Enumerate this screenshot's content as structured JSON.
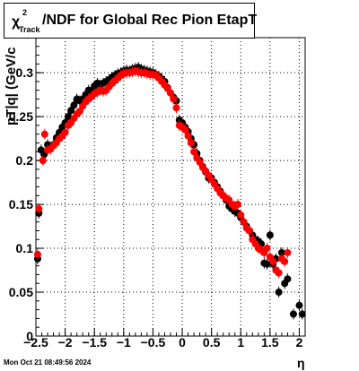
{
  "title": {
    "chi_symbol": "χ",
    "superscript": "2",
    "subscript": "Track",
    "rest": "/NDF for Global Rec Pion EtapT"
  },
  "timestamp": "Mon Oct 21 08:49:56 2024",
  "chart_data": {
    "type": "scatter",
    "xlabel": "η",
    "ylabel": "p_{T}|q| (GeV/c)",
    "ylabel_display": "pT|q| (GeV/c",
    "xlim": [
      -2.5,
      2.1
    ],
    "ylim": [
      0,
      0.34
    ],
    "xticks": [
      -2.5,
      -2,
      -1.5,
      -1,
      -0.5,
      0,
      0.5,
      1,
      1.5,
      2
    ],
    "xtick_labels": [
      "−2.5",
      "−2",
      "−1.5",
      "−1",
      "−0.5",
      "0",
      "0.5",
      "1",
      "1.5",
      "2"
    ],
    "yticks": [
      0,
      0.05,
      0.1,
      0.15,
      0.2,
      0.25,
      0.3
    ],
    "ytick_labels": [
      "0",
      "0.05",
      "0.1",
      "0.15",
      "0.2",
      "0.25",
      "0.3"
    ],
    "grid": true,
    "series": [
      {
        "color": "#000000",
        "marker": "circle",
        "points": [
          [
            -2.47,
            0.088
          ],
          [
            -2.45,
            0.14
          ],
          [
            -2.41,
            0.212
          ],
          [
            -2.36,
            0.207
          ],
          [
            -2.3,
            0.218
          ],
          [
            -2.25,
            0.215
          ],
          [
            -2.2,
            0.218
          ],
          [
            -2.15,
            0.226
          ],
          [
            -2.1,
            0.232
          ],
          [
            -2.05,
            0.238
          ],
          [
            -2.0,
            0.243
          ],
          [
            -1.95,
            0.25
          ],
          [
            -1.9,
            0.257
          ],
          [
            -1.85,
            0.263
          ],
          [
            -1.8,
            0.27
          ],
          [
            -1.75,
            0.268
          ],
          [
            -1.7,
            0.27
          ],
          [
            -1.65,
            0.275
          ],
          [
            -1.6,
            0.28
          ],
          [
            -1.55,
            0.28
          ],
          [
            -1.5,
            0.285
          ],
          [
            -1.45,
            0.288
          ],
          [
            -1.4,
            0.286
          ],
          [
            -1.35,
            0.288
          ],
          [
            -1.3,
            0.29
          ],
          [
            -1.25,
            0.292
          ],
          [
            -1.2,
            0.295
          ],
          [
            -1.15,
            0.297
          ],
          [
            -1.1,
            0.299
          ],
          [
            -1.05,
            0.3
          ],
          [
            -1.0,
            0.302
          ],
          [
            -0.95,
            0.303
          ],
          [
            -0.9,
            0.302
          ],
          [
            -0.85,
            0.304
          ],
          [
            -0.8,
            0.305
          ],
          [
            -0.75,
            0.306
          ],
          [
            -0.7,
            0.304
          ],
          [
            -0.65,
            0.303
          ],
          [
            -0.6,
            0.302
          ],
          [
            -0.55,
            0.301
          ],
          [
            -0.5,
            0.3
          ],
          [
            -0.45,
            0.298
          ],
          [
            -0.4,
            0.296
          ],
          [
            -0.35,
            0.293
          ],
          [
            -0.3,
            0.29
          ],
          [
            -0.25,
            0.283
          ],
          [
            -0.2,
            0.277
          ],
          [
            -0.15,
            0.272
          ],
          [
            -0.1,
            0.268
          ],
          [
            -0.05,
            0.246
          ],
          [
            0.0,
            0.243
          ],
          [
            0.05,
            0.238
          ],
          [
            0.1,
            0.233
          ],
          [
            0.15,
            0.225
          ],
          [
            0.2,
            0.218
          ],
          [
            0.25,
            0.208
          ],
          [
            0.3,
            0.2
          ],
          [
            0.35,
            0.193
          ],
          [
            0.4,
            0.187
          ],
          [
            0.45,
            0.18
          ],
          [
            0.5,
            0.18
          ],
          [
            0.55,
            0.175
          ],
          [
            0.6,
            0.17
          ],
          [
            0.65,
            0.165
          ],
          [
            0.7,
            0.16
          ],
          [
            0.75,
            0.155
          ],
          [
            0.8,
            0.148
          ],
          [
            0.85,
            0.145
          ],
          [
            0.9,
            0.142
          ],
          [
            0.95,
            0.14
          ],
          [
            1.0,
            0.135
          ],
          [
            1.05,
            0.13
          ],
          [
            1.1,
            0.125
          ],
          [
            1.15,
            0.12
          ],
          [
            1.2,
            0.115
          ],
          [
            1.25,
            0.11
          ],
          [
            1.3,
            0.108
          ],
          [
            1.35,
            0.105
          ],
          [
            1.4,
            0.083
          ],
          [
            1.45,
            0.082
          ],
          [
            1.5,
            0.115
          ],
          [
            1.55,
            0.082
          ],
          [
            1.6,
            0.088
          ],
          [
            1.65,
            0.05
          ],
          [
            1.7,
            0.095
          ],
          [
            1.75,
            0.06
          ],
          [
            1.8,
            0.065
          ],
          [
            1.9,
            0.025
          ],
          [
            2.0,
            0.035
          ],
          [
            2.05,
            0.025
          ]
        ]
      },
      {
        "color": "#ff0000",
        "marker": "circle",
        "points": [
          [
            -2.47,
            0.093
          ],
          [
            -2.45,
            0.145
          ],
          [
            -2.38,
            0.2
          ],
          [
            -2.35,
            0.23
          ],
          [
            -2.3,
            0.212
          ],
          [
            -2.25,
            0.213
          ],
          [
            -2.2,
            0.217
          ],
          [
            -2.15,
            0.22
          ],
          [
            -2.1,
            0.225
          ],
          [
            -2.05,
            0.228
          ],
          [
            -2.0,
            0.232
          ],
          [
            -1.95,
            0.24
          ],
          [
            -1.9,
            0.243
          ],
          [
            -1.85,
            0.248
          ],
          [
            -1.8,
            0.253
          ],
          [
            -1.75,
            0.256
          ],
          [
            -1.7,
            0.262
          ],
          [
            -1.65,
            0.267
          ],
          [
            -1.6,
            0.27
          ],
          [
            -1.55,
            0.273
          ],
          [
            -1.5,
            0.276
          ],
          [
            -1.45,
            0.278
          ],
          [
            -1.4,
            0.28
          ],
          [
            -1.35,
            0.279
          ],
          [
            -1.3,
            0.28
          ],
          [
            -1.25,
            0.284
          ],
          [
            -1.2,
            0.288
          ],
          [
            -1.15,
            0.291
          ],
          [
            -1.1,
            0.294
          ],
          [
            -1.05,
            0.297
          ],
          [
            -1.0,
            0.299
          ],
          [
            -0.95,
            0.3
          ],
          [
            -0.9,
            0.3
          ],
          [
            -0.85,
            0.301
          ],
          [
            -0.8,
            0.302
          ],
          [
            -0.75,
            0.301
          ],
          [
            -0.7,
            0.3
          ],
          [
            -0.65,
            0.3
          ],
          [
            -0.6,
            0.299
          ],
          [
            -0.55,
            0.298
          ],
          [
            -0.5,
            0.298
          ],
          [
            -0.45,
            0.297
          ],
          [
            -0.4,
            0.294
          ],
          [
            -0.35,
            0.29
          ],
          [
            -0.3,
            0.286
          ],
          [
            -0.25,
            0.282
          ],
          [
            -0.2,
            0.277
          ],
          [
            -0.15,
            0.27
          ],
          [
            -0.1,
            0.26
          ],
          [
            -0.05,
            0.24
          ],
          [
            0.0,
            0.238
          ],
          [
            0.05,
            0.235
          ],
          [
            0.1,
            0.228
          ],
          [
            0.15,
            0.22
          ],
          [
            0.2,
            0.21
          ],
          [
            0.25,
            0.203
          ],
          [
            0.3,
            0.198
          ],
          [
            0.35,
            0.192
          ],
          [
            0.4,
            0.188
          ],
          [
            0.45,
            0.183
          ],
          [
            0.5,
            0.178
          ],
          [
            0.55,
            0.173
          ],
          [
            0.6,
            0.168
          ],
          [
            0.65,
            0.163
          ],
          [
            0.7,
            0.16
          ],
          [
            0.75,
            0.157
          ],
          [
            0.8,
            0.155
          ],
          [
            0.85,
            0.15
          ],
          [
            0.9,
            0.148
          ],
          [
            0.95,
            0.15
          ],
          [
            1.0,
            0.138
          ],
          [
            1.05,
            0.13
          ],
          [
            1.1,
            0.123
          ],
          [
            1.15,
            0.12
          ],
          [
            1.2,
            0.11
          ],
          [
            1.25,
            0.105
          ],
          [
            1.3,
            0.1
          ],
          [
            1.35,
            0.098
          ],
          [
            1.4,
            0.095
          ],
          [
            1.45,
            0.1
          ],
          [
            1.5,
            0.09
          ],
          [
            1.55,
            0.085
          ],
          [
            1.6,
            0.075
          ],
          [
            1.65,
            0.072
          ],
          [
            1.7,
            0.088
          ],
          [
            1.75,
            0.085
          ],
          [
            1.8,
            0.095
          ]
        ]
      }
    ]
  }
}
